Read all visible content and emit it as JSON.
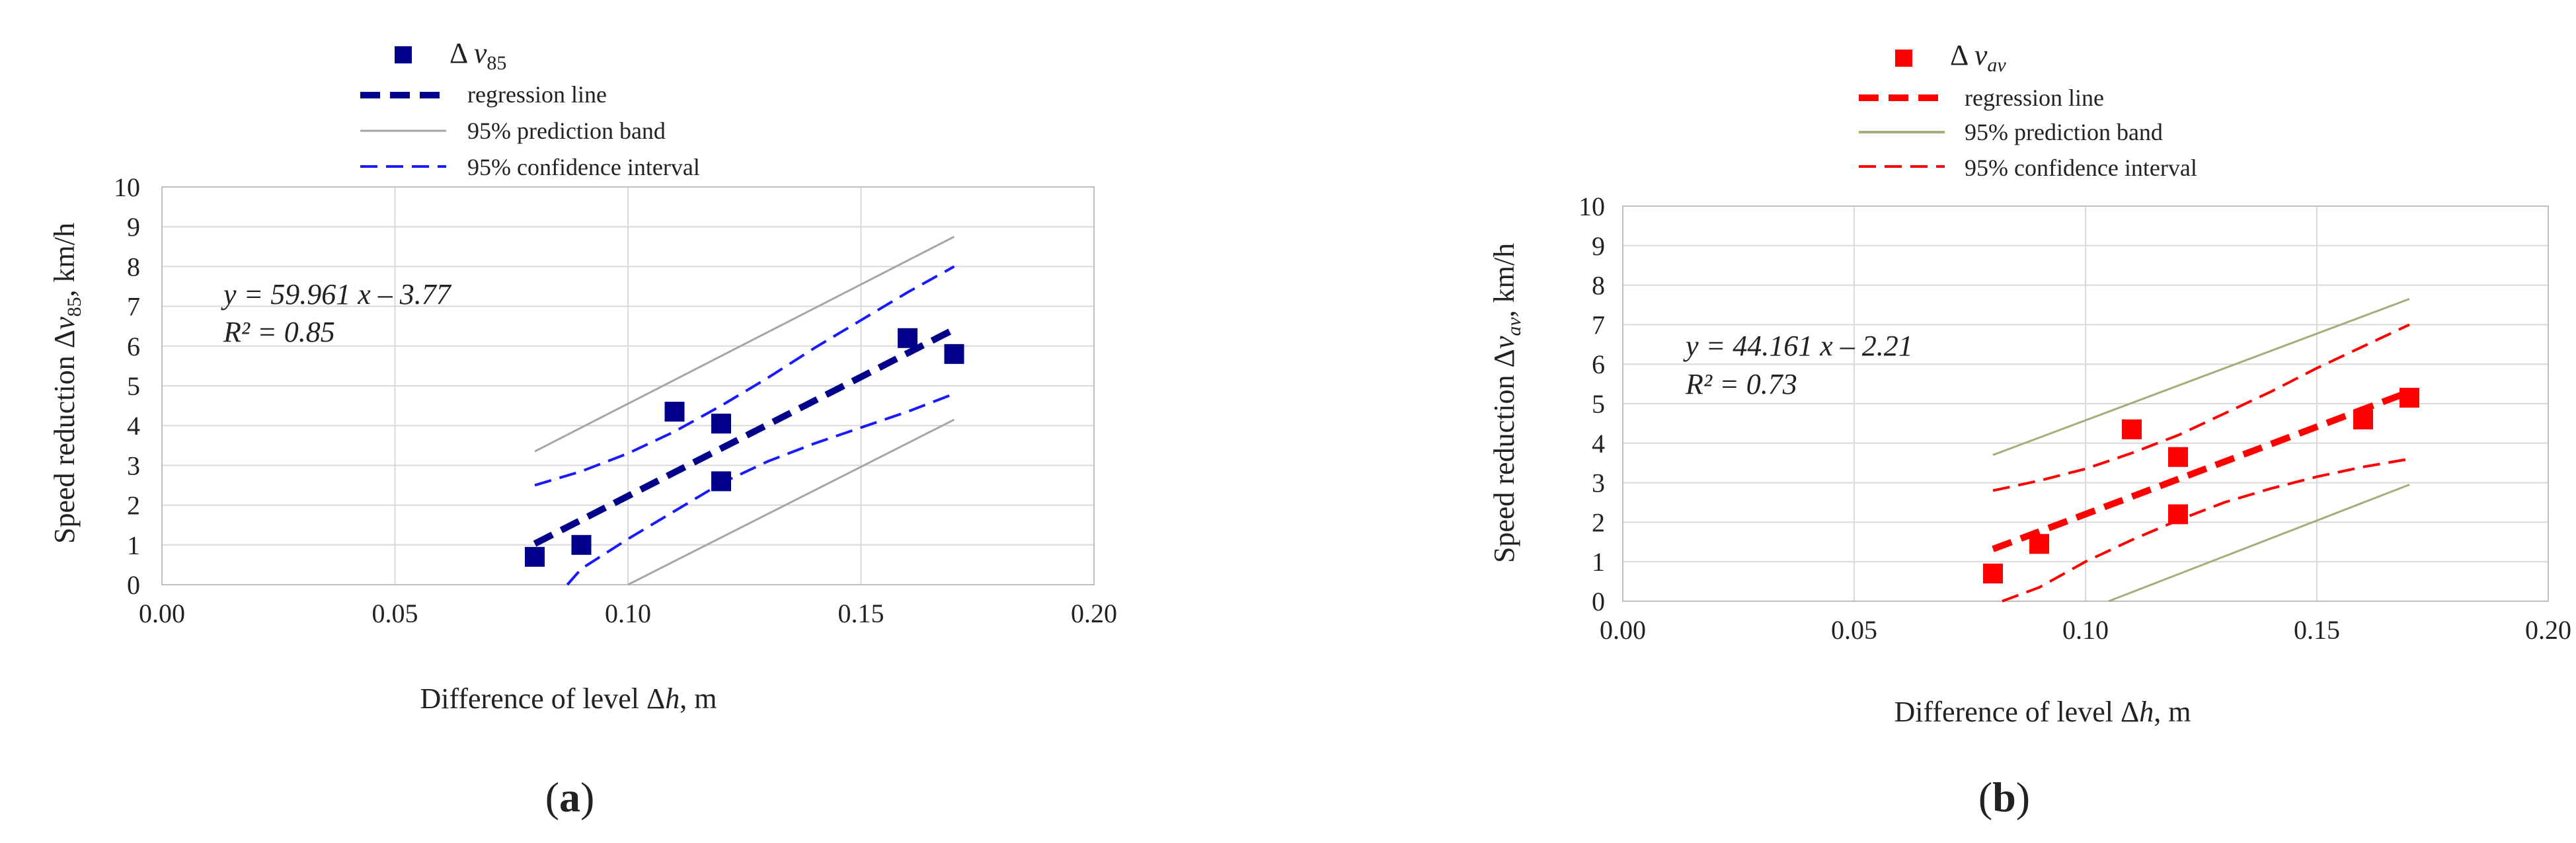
{
  "chart_data": [
    {
      "type": "scatter",
      "panel_label": "a",
      "xlabel": "Difference of level Δh, m",
      "ylabel": "Speed reduction Δv85, km/h",
      "xlim": [
        0,
        0.2
      ],
      "ylim": [
        0,
        10
      ],
      "x_ticks": [
        "0.00",
        "0.05",
        "0.10",
        "0.15",
        "0.20"
      ],
      "y_ticks": [
        "0",
        "1",
        "2",
        "3",
        "4",
        "5",
        "6",
        "7",
        "8",
        "9",
        "10"
      ],
      "grid": true,
      "legend_position": "top",
      "colors": {
        "points": "#00008b",
        "regression": "#00008b",
        "confidence": "#1a1aff",
        "prediction": "#a6a6a6"
      },
      "equation": "y = 59.961 x – 3.77",
      "r2": "R² = 0.85",
      "series": [
        {
          "name": "Δ v85",
          "kind": "points",
          "points": [
            [
              0.08,
              0.7
            ],
            [
              0.09,
              1.0
            ],
            [
              0.11,
              4.35
            ],
            [
              0.12,
              4.05
            ],
            [
              0.12,
              2.6
            ],
            [
              0.16,
              6.2
            ],
            [
              0.17,
              5.8
            ]
          ]
        },
        {
          "name": "regression line",
          "kind": "regression",
          "points": [
            [
              0.08,
              1.03
            ],
            [
              0.17,
              6.42
            ]
          ]
        },
        {
          "name": "95% prediction band",
          "kind": "prediction",
          "upper": [
            [
              0.08,
              3.35
            ],
            [
              0.17,
              8.75
            ]
          ],
          "lower": [
            [
              0.1,
              0
            ],
            [
              0.17,
              4.15
            ]
          ]
        },
        {
          "name": "95% confidence interval",
          "kind": "confidence",
          "upper": [
            [
              0.08,
              2.5
            ],
            [
              0.09,
              2.85
            ],
            [
              0.1,
              3.3
            ],
            [
              0.11,
              3.85
            ],
            [
              0.12,
              4.5
            ],
            [
              0.13,
              5.2
            ],
            [
              0.14,
              5.95
            ],
            [
              0.15,
              6.65
            ],
            [
              0.16,
              7.35
            ],
            [
              0.17,
              8.0
            ]
          ],
          "lower": [
            [
              0.087,
              0
            ],
            [
              0.09,
              0.4
            ],
            [
              0.1,
              1.15
            ],
            [
              0.11,
              1.85
            ],
            [
              0.12,
              2.55
            ],
            [
              0.13,
              3.1
            ],
            [
              0.14,
              3.55
            ],
            [
              0.15,
              3.95
            ],
            [
              0.16,
              4.35
            ],
            [
              0.17,
              4.8
            ]
          ]
        }
      ]
    },
    {
      "type": "scatter",
      "panel_label": "b",
      "xlabel": "Difference of level Δh, m",
      "ylabel": "Speed reduction Δvav, km/h",
      "xlim": [
        0,
        0.2
      ],
      "ylim": [
        0,
        10
      ],
      "x_ticks": [
        "0.00",
        "0.05",
        "0.10",
        "0.15",
        "0.20"
      ],
      "y_ticks": [
        "0",
        "1",
        "2",
        "3",
        "4",
        "5",
        "6",
        "7",
        "8",
        "9",
        "10"
      ],
      "grid": true,
      "legend_position": "top",
      "colors": {
        "points": "#ff0000",
        "regression": "#ff0000",
        "confidence": "#ff0000",
        "prediction": "#a8ab7a"
      },
      "equation": "y = 44.161 x – 2.21",
      "r2": "R² = 0.73",
      "series": [
        {
          "name": "Δ vav",
          "kind": "points",
          "points": [
            [
              0.08,
              0.7
            ],
            [
              0.09,
              1.45
            ],
            [
              0.11,
              4.35
            ],
            [
              0.12,
              3.65
            ],
            [
              0.12,
              2.2
            ],
            [
              0.16,
              4.6
            ],
            [
              0.17,
              5.15
            ]
          ]
        },
        {
          "name": "regression line",
          "kind": "regression",
          "points": [
            [
              0.08,
              1.32
            ],
            [
              0.17,
              5.3
            ]
          ]
        },
        {
          "name": "95% prediction band",
          "kind": "prediction",
          "upper": [
            [
              0.08,
              3.7
            ],
            [
              0.17,
              7.65
            ]
          ],
          "lower": [
            [
              0.105,
              0
            ],
            [
              0.17,
              2.95
            ]
          ]
        },
        {
          "name": "95% confidence interval",
          "kind": "confidence",
          "upper": [
            [
              0.08,
              2.8
            ],
            [
              0.09,
              3.05
            ],
            [
              0.1,
              3.35
            ],
            [
              0.11,
              3.75
            ],
            [
              0.12,
              4.2
            ],
            [
              0.13,
              4.75
            ],
            [
              0.14,
              5.3
            ],
            [
              0.15,
              5.9
            ],
            [
              0.16,
              6.45
            ],
            [
              0.17,
              7.0
            ]
          ],
          "lower": [
            [
              0.082,
              0
            ],
            [
              0.09,
              0.35
            ],
            [
              0.1,
              1.0
            ],
            [
              0.11,
              1.55
            ],
            [
              0.12,
              2.05
            ],
            [
              0.13,
              2.5
            ],
            [
              0.14,
              2.85
            ],
            [
              0.15,
              3.15
            ],
            [
              0.16,
              3.4
            ],
            [
              0.17,
              3.6
            ]
          ]
        }
      ]
    }
  ]
}
